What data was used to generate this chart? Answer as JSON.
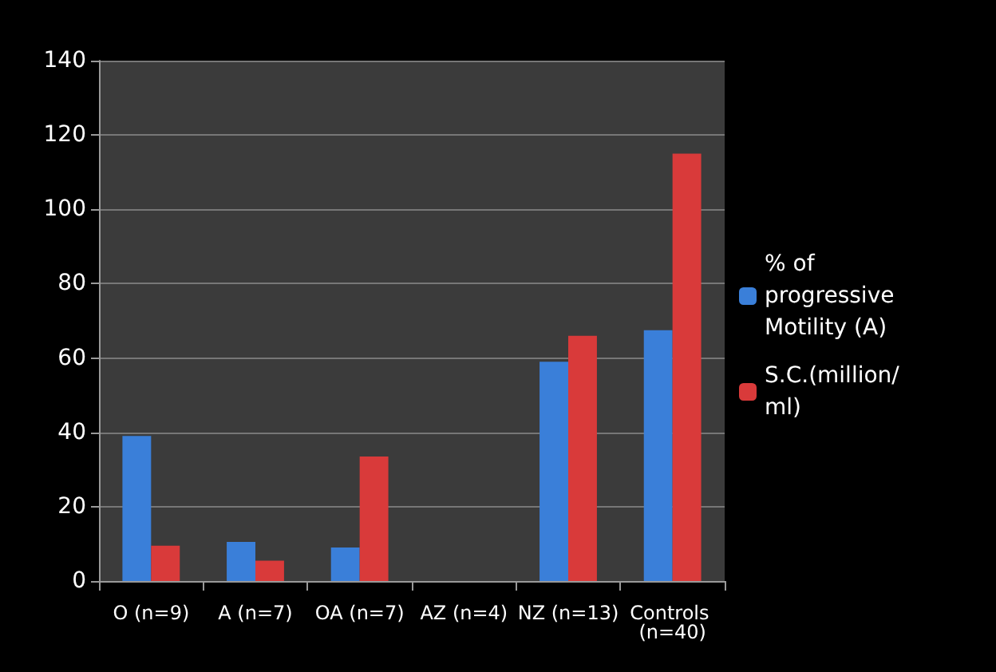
{
  "chart_data": {
    "type": "bar",
    "categories": [
      "O (n=9)",
      "A (n=7)",
      "OA (n=7)",
      "AZ (n=4)",
      "NZ (n=13)",
      "Controls (n=40)"
    ],
    "series": [
      {
        "name": "% of progressive Motility (A)",
        "color": "#3a7fd9",
        "values": [
          39,
          10.5,
          9,
          0,
          59,
          67.5
        ]
      },
      {
        "name": "S.C.(million/ml)",
        "color": "#d93a3a",
        "values": [
          9.5,
          5.5,
          33.5,
          0,
          66,
          115
        ]
      }
    ],
    "ylim": [
      0,
      140
    ],
    "yticks": [
      0,
      20,
      40,
      60,
      80,
      100,
      120,
      140
    ],
    "grid": "y",
    "legend": "right"
  }
}
